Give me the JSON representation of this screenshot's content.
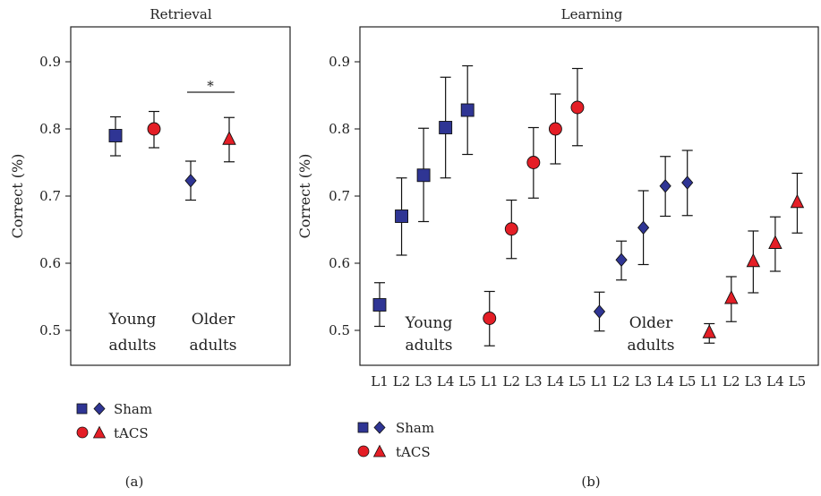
{
  "colors": {
    "sham": "#2f3594",
    "tacs": "#e41e26",
    "axis": "#222222"
  },
  "legend": {
    "sham": "Sham",
    "tacs": "tACS"
  },
  "chart_data": [
    {
      "type": "scatter",
      "panel": "(a)",
      "title": "Retrieval",
      "ylabel": "Correct (%)",
      "ylim": [
        0.45,
        0.95
      ],
      "yticks": [
        "0.5",
        "0.6",
        "0.7",
        "0.8",
        "0.9"
      ],
      "group_labels": [
        [
          "Young",
          "adults"
        ],
        [
          "Older",
          "adults"
        ]
      ],
      "significance": "*",
      "grid": false,
      "points": [
        {
          "group": "Young adults",
          "condition": "Sham",
          "marker": "square",
          "value": 0.79,
          "err_low": 0.76,
          "err_high": 0.818
        },
        {
          "group": "Young adults",
          "condition": "tACS",
          "marker": "circle",
          "value": 0.8,
          "err_low": 0.772,
          "err_high": 0.826
        },
        {
          "group": "Older adults",
          "condition": "Sham",
          "marker": "diamond",
          "value": 0.723,
          "err_low": 0.694,
          "err_high": 0.752
        },
        {
          "group": "Older adults",
          "condition": "tACS",
          "marker": "triangle",
          "value": 0.785,
          "err_low": 0.751,
          "err_high": 0.817
        }
      ]
    },
    {
      "type": "scatter",
      "panel": "(b)",
      "title": "Learning",
      "ylabel": "Correct (%)",
      "ylim": [
        0.45,
        0.95
      ],
      "yticks": [
        "0.5",
        "0.6",
        "0.7",
        "0.8",
        "0.9"
      ],
      "categories": [
        "L1",
        "L2",
        "L3",
        "L4",
        "L5",
        "L1",
        "L2",
        "L3",
        "L4",
        "L5",
        "L1",
        "L2",
        "L3",
        "L4",
        "L5",
        "L1",
        "L2",
        "L3",
        "L4",
        "L5"
      ],
      "group_labels": [
        [
          "Young",
          "adults"
        ],
        [
          "Older",
          "adults"
        ]
      ],
      "grid": false,
      "series": [
        {
          "group": "Young adults",
          "condition": "Sham",
          "marker": "square",
          "values": [
            0.538,
            0.67,
            0.731,
            0.802,
            0.828
          ],
          "err_low": [
            0.506,
            0.612,
            0.662,
            0.727,
            0.762
          ],
          "err_high": [
            0.571,
            0.727,
            0.801,
            0.877,
            0.894
          ]
        },
        {
          "group": "Young adults",
          "condition": "tACS",
          "marker": "circle",
          "values": [
            0.518,
            0.651,
            0.75,
            0.8,
            0.832
          ],
          "err_low": [
            0.477,
            0.607,
            0.697,
            0.748,
            0.775
          ],
          "err_high": [
            0.558,
            0.694,
            0.802,
            0.852,
            0.89
          ]
        },
        {
          "group": "Older adults",
          "condition": "Sham",
          "marker": "diamond",
          "values": [
            0.528,
            0.605,
            0.653,
            0.715,
            0.72
          ],
          "err_low": [
            0.499,
            0.575,
            0.598,
            0.67,
            0.671
          ],
          "err_high": [
            0.557,
            0.633,
            0.708,
            0.759,
            0.768
          ]
        },
        {
          "group": "Older adults",
          "condition": "tACS",
          "marker": "triangle",
          "values": [
            0.497,
            0.548,
            0.603,
            0.63,
            0.691
          ],
          "err_low": [
            0.481,
            0.513,
            0.556,
            0.588,
            0.645
          ],
          "err_high": [
            0.51,
            0.58,
            0.648,
            0.669,
            0.734
          ]
        }
      ]
    }
  ]
}
